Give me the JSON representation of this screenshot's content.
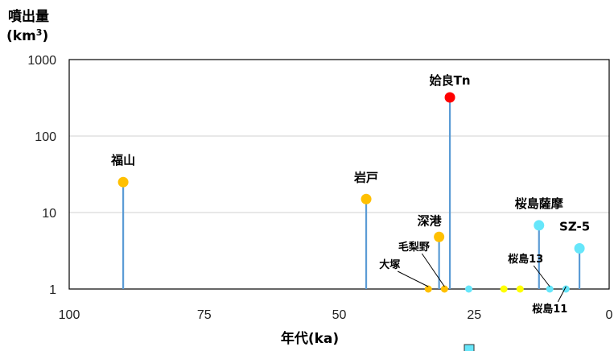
{
  "chart_data": {
    "type": "scatter",
    "title": "",
    "ylabel": "噴出量",
    "ylabel_unit": "(km3)",
    "xlabel": "年代(ka)",
    "x_reversed": true,
    "xlim": [
      0,
      100
    ],
    "ylim": [
      1,
      1000
    ],
    "y_scale": "log",
    "x_ticks": [
      "100",
      "75",
      "50",
      "25",
      "0"
    ],
    "y_ticks": [
      "1000",
      "100",
      "10",
      "1"
    ],
    "grid": "horizontal",
    "points": [
      {
        "name": "福山",
        "x": 90,
        "y": 25,
        "color": "#FFC000"
      },
      {
        "name": "岩戸",
        "x": 45,
        "y": 15,
        "color": "#FFC000"
      },
      {
        "name": "姶良Tn",
        "x": 29.5,
        "y": 320,
        "color": "#FF0000"
      },
      {
        "name": "深港",
        "x": 31.5,
        "y": 4.8,
        "color": "#FFC000"
      },
      {
        "name": "毛梨野",
        "x": 30.5,
        "y": 1,
        "color": "#FFC000"
      },
      {
        "name": "大塚",
        "x": 33.5,
        "y": 1,
        "color": "#FFC000"
      },
      {
        "name": "桜島薩摩",
        "x": 13,
        "y": 6.8,
        "color": "#66E6FA"
      },
      {
        "name": "SZ-5",
        "x": 5.5,
        "y": 3.4,
        "color": "#66E6FA"
      },
      {
        "name": "桜島13",
        "x": 11,
        "y": 1,
        "color": "#66E6FA"
      },
      {
        "name": "桜島11",
        "x": 8,
        "y": 1,
        "color": "#66E6FA"
      },
      {
        "name": "",
        "x": 26,
        "y": 1,
        "color": "#66E6FA"
      },
      {
        "name": "",
        "x": 19.5,
        "y": 1,
        "color": "#FFFF00"
      },
      {
        "name": "",
        "x": 16.5,
        "y": 1,
        "color": "#FFFF00"
      }
    ]
  }
}
